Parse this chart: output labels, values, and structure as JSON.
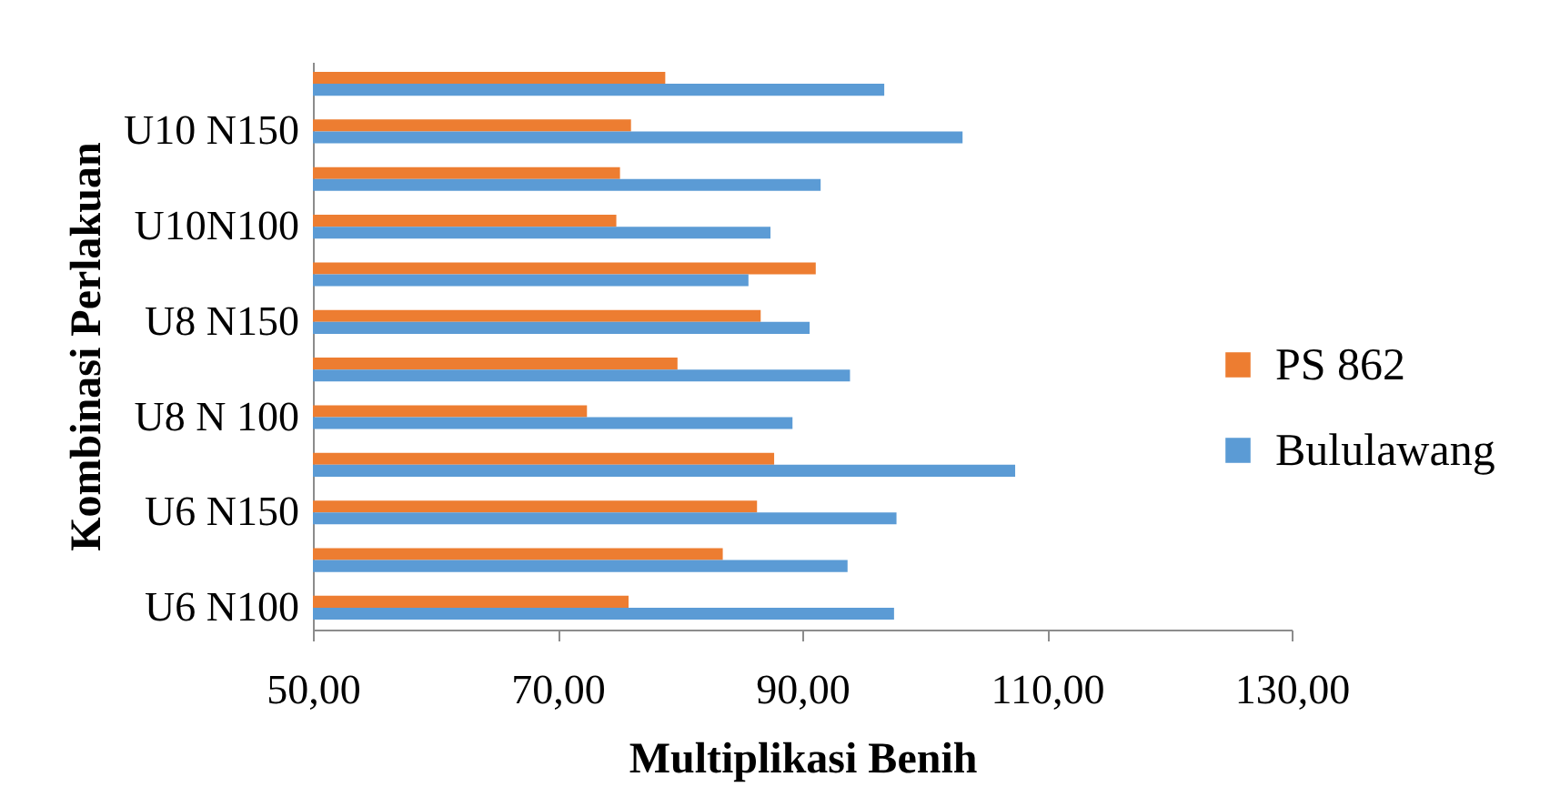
{
  "chart_data": {
    "type": "bar",
    "orientation": "horizontal",
    "xlabel": "Multiplikasi Benih",
    "ylabel": "Kombinasi Perlakuan",
    "categories": [
      null,
      "U10 N150",
      null,
      "U10N100",
      null,
      "U8 N150",
      null,
      "U8 N 100",
      null,
      "U6 N150",
      null,
      "U6 N100"
    ],
    "series": [
      {
        "name": "PS 862",
        "color": "#ed7d31",
        "values": [
          78.8,
          76.0,
          75.1,
          74.8,
          91.1,
          86.6,
          79.8,
          72.4,
          87.7,
          86.3,
          83.5,
          75.8
        ]
      },
      {
        "name": "Bululawang",
        "color": "#5b9bd5",
        "values": [
          96.7,
          103.1,
          91.5,
          87.4,
          85.6,
          90.6,
          93.9,
          89.2,
          107.4,
          97.7,
          93.7,
          97.5
        ]
      }
    ],
    "xlim": [
      50,
      130
    ],
    "xticks": [
      {
        "value": 50,
        "label": "50,00"
      },
      {
        "value": 70,
        "label": "70,00"
      },
      {
        "value": 90,
        "label": "90,00"
      },
      {
        "value": 110,
        "label": "110,00"
      },
      {
        "value": 130,
        "label": "130,00"
      }
    ],
    "legend": "right"
  }
}
